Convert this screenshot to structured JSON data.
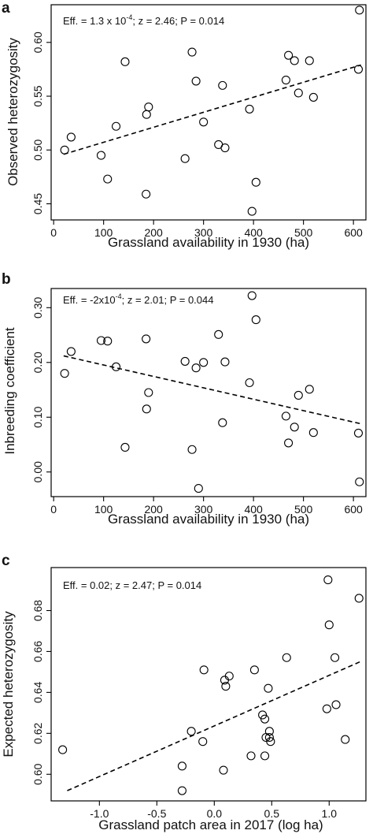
{
  "panels": [
    {
      "letter": "a",
      "stats": "Eff. = 1.3 x 10",
      "stats_sup": "-4",
      "stats_rest": "; z = 2.46; P = 0.014",
      "ylabel": "Observed heterozygosity",
      "xlabel": "Grassland availability in 1930 (ha)"
    },
    {
      "letter": "b",
      "stats": "Eff. = -2x10",
      "stats_sup": "-4",
      "stats_rest": "; z = 2.01; P = 0.044",
      "ylabel": "Inbreeding coefficient",
      "xlabel": "Grassland availability in 1930 (ha)"
    },
    {
      "letter": "c",
      "stats": "Eff. = 0.02; z = 2.47; P = 0.014",
      "stats_sup": "",
      "stats_rest": "",
      "ylabel": "Expected heterozygosity",
      "xlabel": "Grassland patch area in 2017 (log ha)"
    }
  ],
  "chart_data": [
    {
      "type": "scatter",
      "xlabel": "Grassland availability in 1930 (ha)",
      "ylabel": "Observed heterozygosity",
      "xlim": [
        -5,
        625
      ],
      "ylim": [
        0.435,
        0.635
      ],
      "xticks": [
        0,
        100,
        200,
        300,
        400,
        500,
        600
      ],
      "xtick_labels": [
        "0",
        "100",
        "200",
        "300",
        "400",
        "500",
        "600"
      ],
      "yticks": [
        0.45,
        0.5,
        0.55,
        0.6
      ],
      "ytick_labels": [
        "0.45",
        "0.50",
        "0.55",
        "0.60"
      ],
      "points": [
        [
          22,
          0.5
        ],
        [
          35,
          0.512
        ],
        [
          95,
          0.495
        ],
        [
          108,
          0.473
        ],
        [
          125,
          0.522
        ],
        [
          143,
          0.582
        ],
        [
          185,
          0.459
        ],
        [
          186,
          0.533
        ],
        [
          190,
          0.54
        ],
        [
          263,
          0.492
        ],
        [
          277,
          0.591
        ],
        [
          285,
          0.564
        ],
        [
          300,
          0.526
        ],
        [
          330,
          0.505
        ],
        [
          338,
          0.56
        ],
        [
          343,
          0.502
        ],
        [
          392,
          0.538
        ],
        [
          397,
          0.443
        ],
        [
          405,
          0.47
        ],
        [
          465,
          0.565
        ],
        [
          470,
          0.588
        ],
        [
          482,
          0.583
        ],
        [
          490,
          0.553
        ],
        [
          512,
          0.583
        ],
        [
          520,
          0.549
        ],
        [
          610,
          0.575
        ],
        [
          612,
          0.63
        ]
      ],
      "trend": {
        "x": [
          20,
          615
        ],
        "y": [
          0.496,
          0.579
        ]
      }
    },
    {
      "type": "scatter",
      "xlabel": "Grassland availability in 1930 (ha)",
      "ylabel": "Inbreeding coefficient",
      "xlim": [
        -5,
        625
      ],
      "ylim": [
        -0.045,
        0.335
      ],
      "xticks": [
        0,
        100,
        200,
        300,
        400,
        500,
        600
      ],
      "xtick_labels": [
        "0",
        "100",
        "200",
        "300",
        "400",
        "500",
        "600"
      ],
      "yticks": [
        0.0,
        0.1,
        0.2,
        0.3
      ],
      "ytick_labels": [
        "0.00",
        "0.10",
        "0.20",
        "0.30"
      ],
      "points": [
        [
          22,
          0.18
        ],
        [
          35,
          0.22
        ],
        [
          95,
          0.24
        ],
        [
          108,
          0.239
        ],
        [
          125,
          0.192
        ],
        [
          143,
          0.045
        ],
        [
          185,
          0.243
        ],
        [
          186,
          0.115
        ],
        [
          190,
          0.145
        ],
        [
          263,
          0.202
        ],
        [
          277,
          0.041
        ],
        [
          285,
          0.19
        ],
        [
          290,
          -0.03
        ],
        [
          300,
          0.2
        ],
        [
          330,
          0.251
        ],
        [
          338,
          0.09
        ],
        [
          343,
          0.201
        ],
        [
          392,
          0.163
        ],
        [
          397,
          0.322
        ],
        [
          405,
          0.278
        ],
        [
          465,
          0.102
        ],
        [
          470,
          0.053
        ],
        [
          482,
          0.082
        ],
        [
          490,
          0.14
        ],
        [
          512,
          0.151
        ],
        [
          520,
          0.072
        ],
        [
          610,
          0.071
        ],
        [
          612,
          -0.018
        ]
      ],
      "trend": {
        "x": [
          20,
          615
        ],
        "y": [
          0.212,
          0.088
        ]
      }
    },
    {
      "type": "scatter",
      "xlabel": "Grassland patch area in 2017 (log ha)",
      "ylabel": "Expected heterozygosity",
      "xlim": [
        -1.42,
        1.32
      ],
      "ylim": [
        0.587,
        0.701
      ],
      "xticks": [
        -1.0,
        -0.5,
        0.0,
        0.5,
        1.0
      ],
      "xtick_labels": [
        "-1.0",
        "-0.5",
        "0.0",
        "0.5",
        "1.0"
      ],
      "yticks": [
        0.6,
        0.62,
        0.64,
        0.66,
        0.68
      ],
      "ytick_labels": [
        "0.60",
        "0.62",
        "0.64",
        "0.66",
        "0.68"
      ],
      "points": [
        [
          -1.32,
          0.612
        ],
        [
          -0.28,
          0.604
        ],
        [
          -0.28,
          0.592
        ],
        [
          -0.2,
          0.621
        ],
        [
          -0.1,
          0.616
        ],
        [
          -0.09,
          0.651
        ],
        [
          0.08,
          0.602
        ],
        [
          0.09,
          0.646
        ],
        [
          0.1,
          0.643
        ],
        [
          0.13,
          0.648
        ],
        [
          0.32,
          0.609
        ],
        [
          0.35,
          0.651
        ],
        [
          0.42,
          0.629
        ],
        [
          0.44,
          0.627
        ],
        [
          0.44,
          0.609
        ],
        [
          0.45,
          0.618
        ],
        [
          0.47,
          0.642
        ],
        [
          0.48,
          0.621
        ],
        [
          0.48,
          0.618
        ],
        [
          0.49,
          0.616
        ],
        [
          0.63,
          0.657
        ],
        [
          0.98,
          0.632
        ],
        [
          0.99,
          0.695
        ],
        [
          1.0,
          0.673
        ],
        [
          1.05,
          0.657
        ],
        [
          1.06,
          0.634
        ],
        [
          1.14,
          0.617
        ],
        [
          1.26,
          0.686
        ]
      ],
      "trend": {
        "x": [
          -1.28,
          1.27
        ],
        "y": [
          0.592,
          0.655
        ]
      }
    }
  ]
}
